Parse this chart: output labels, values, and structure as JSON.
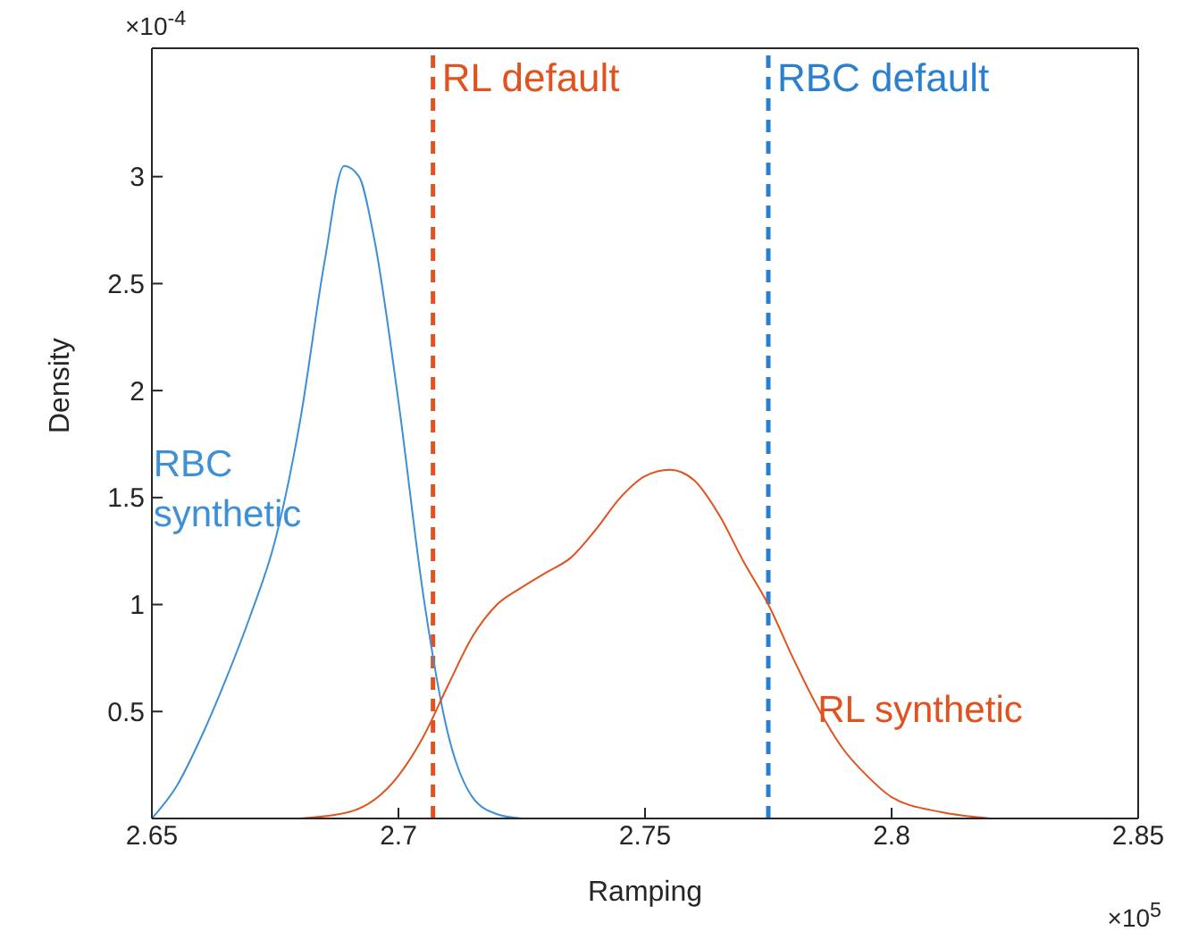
{
  "chart_data": {
    "type": "line",
    "xlabel": "Ramping",
    "ylabel": "Density",
    "xlim": [
      2.65,
      2.85
    ],
    "xticks": [
      2.65,
      2.7,
      2.75,
      2.8,
      2.85
    ],
    "ylim": [
      0,
      3.6
    ],
    "yticks": [
      0.5,
      1,
      1.5,
      2,
      2.5,
      3
    ],
    "marker": "none",
    "line_style": "solid",
    "annotations": [
      "×10$^{-4}$",
      "×10$^{5}$"
    ],
    "series": [
      {
        "name": "RBC synthetic",
        "color": "#3d8fd6",
        "x": [
          2.65,
          2.655,
          2.66,
          2.665,
          2.67,
          2.675,
          2.68,
          2.685,
          2.689,
          2.692,
          2.695,
          2.7,
          2.705,
          2.71,
          2.715,
          2.72,
          2.725
        ],
        "values": [
          0,
          0.15,
          0.38,
          0.65,
          0.95,
          1.3,
          1.85,
          2.6,
          3.05,
          3.0,
          2.72,
          1.95,
          1.05,
          0.4,
          0.1,
          0.02,
          0
        ]
      },
      {
        "name": "RL synthetic",
        "color": "#e0531f",
        "x": [
          2.68,
          2.69,
          2.7,
          2.705,
          2.71,
          2.715,
          2.72,
          2.725,
          2.73,
          2.735,
          2.74,
          2.745,
          2.75,
          2.755,
          2.76,
          2.765,
          2.77,
          2.775,
          2.78,
          2.785,
          2.79,
          2.795,
          2.8,
          2.81,
          2.82
        ],
        "values": [
          0,
          0.03,
          0.2,
          0.38,
          0.62,
          0.85,
          1.0,
          1.08,
          1.15,
          1.22,
          1.35,
          1.5,
          1.6,
          1.63,
          1.58,
          1.42,
          1.2,
          1.0,
          0.75,
          0.52,
          0.33,
          0.2,
          0.1,
          0.03,
          0
        ]
      }
    ],
    "ref_lines": [
      {
        "axis": "x",
        "value": 2.707,
        "label": "RL default",
        "color": "#e0531f",
        "line_style": "dashed"
      },
      {
        "axis": "x",
        "value": 2.775,
        "label": "RBC default",
        "color": "#2b7fcf",
        "line_style": "dashed"
      }
    ]
  }
}
